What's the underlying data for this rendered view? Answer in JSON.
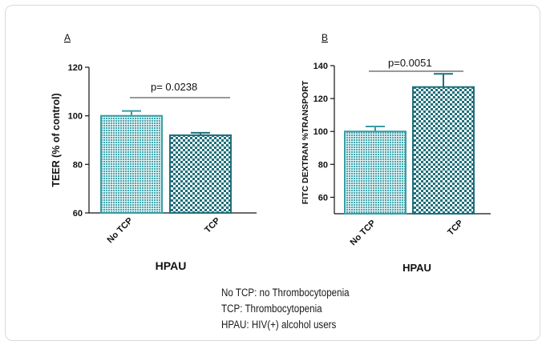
{
  "chart_data": [
    {
      "type": "bar",
      "panel_label": "A",
      "categories": [
        "No TCP",
        "TCP"
      ],
      "values": [
        100,
        92
      ],
      "errors": [
        2,
        1
      ],
      "ylabel": "TEER (% of control)",
      "xlabel": "HPAU",
      "ylim": [
        60,
        120
      ],
      "yticks": [
        60,
        80,
        100,
        120
      ],
      "annotation": "p= 0.0238",
      "colors": [
        "#3a9da5",
        "#1f6f7a"
      ],
      "grid": false
    },
    {
      "type": "bar",
      "panel_label": "B",
      "categories": [
        "No TCP",
        "TCP"
      ],
      "values": [
        100,
        127
      ],
      "errors": [
        3,
        8
      ],
      "ylabel": "FITC DEXTRAN %TRANSPORT",
      "xlabel": "HPAU",
      "ylim": [
        50,
        140
      ],
      "yticks": [
        60,
        80,
        100,
        120,
        140
      ],
      "annotation": "p=0.0051",
      "colors": [
        "#3a9da5",
        "#1f6f7a"
      ],
      "grid": false
    }
  ],
  "legend": {
    "line1": "No TCP: no Thrombocytopenia",
    "line2": "TCP: Thrombocytopenia",
    "line3": "HPAU: HIV(+) alcohol users"
  }
}
